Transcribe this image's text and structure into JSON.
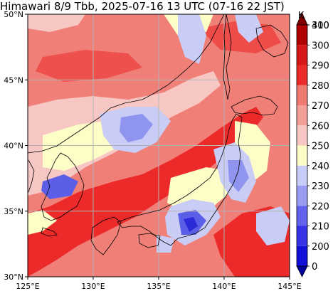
{
  "title": "Himawari 8/9 Tbb, 2025-07-16 13 UTC (07-16 22 JST)",
  "map": {
    "lon_ticks": [
      {
        "value": 125,
        "label": "125°E"
      },
      {
        "value": 130,
        "label": "130°E"
      },
      {
        "value": 135,
        "label": "135°E"
      },
      {
        "value": 140,
        "label": "140°E"
      },
      {
        "value": 145,
        "label": "145°E"
      }
    ],
    "lat_ticks": [
      {
        "value": 30,
        "label": "30°N"
      },
      {
        "value": 35,
        "label": "35°N"
      },
      {
        "value": 40,
        "label": "40°N"
      },
      {
        "value": 45,
        "label": "45°N"
      },
      {
        "value": 50,
        "label": "50°N"
      }
    ],
    "lon_range": [
      125,
      145
    ],
    "lat_range": [
      30,
      50
    ],
    "grid": true,
    "colors": {
      "background_warm": "#f07f78",
      "deep_red": "#ec2a2a",
      "pale_pink": "#f7c7c4",
      "cream": "#fdfdc8",
      "light_blue": "#c9cdf5",
      "mid_blue": "#8f95ee",
      "blue": "#5b5ee6",
      "deep_blue": "#2b2bd8"
    }
  },
  "colorbar": {
    "unit": "K",
    "levels": [
      "0",
      "200",
      "210",
      "220",
      "230",
      "240",
      "250",
      "260",
      "270",
      "280",
      "290",
      "300",
      "310",
      "400"
    ],
    "colors": [
      "#0000a0",
      "#1010d8",
      "#3434e6",
      "#6262ec",
      "#9a9cf2",
      "#c8ccf8",
      "#fdfdc8",
      "#f7c7c4",
      "#f4a09a",
      "#ee7a72",
      "#ec2a2a",
      "#d81818",
      "#b00000",
      "#800000"
    ]
  }
}
